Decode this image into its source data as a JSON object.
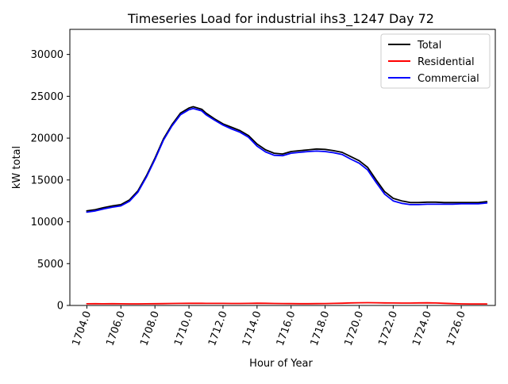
{
  "chart_data": {
    "type": "line",
    "title": "Timeseries Load for industrial ihs3_1247  Day 72",
    "xlabel": "Hour of Year",
    "ylabel": "kW total",
    "xlim": [
      1703.0,
      1728.0
    ],
    "ylim": [
      0,
      33000
    ],
    "xticks": [
      1704.0,
      1706.0,
      1708.0,
      1710.0,
      1712.0,
      1714.0,
      1716.0,
      1718.0,
      1720.0,
      1722.0,
      1724.0,
      1726.0
    ],
    "xtick_labels": [
      "1704.0",
      "1706.0",
      "1708.0",
      "1710.0",
      "1712.0",
      "1714.0",
      "1716.0",
      "1718.0",
      "1720.0",
      "1722.0",
      "1724.0",
      "1726.0"
    ],
    "yticks": [
      0,
      5000,
      10000,
      15000,
      20000,
      25000,
      30000
    ],
    "ytick_labels": [
      "0",
      "5000",
      "10000",
      "15000",
      "20000",
      "25000",
      "30000"
    ],
    "grid": false,
    "legend_position": "top-right",
    "x": [
      1704.0,
      1704.5,
      1705.0,
      1705.5,
      1706.0,
      1706.5,
      1707.0,
      1707.5,
      1708.0,
      1708.5,
      1709.0,
      1709.5,
      1710.0,
      1710.25,
      1710.5,
      1710.75,
      1711.0,
      1711.5,
      1712.0,
      1712.5,
      1713.0,
      1713.5,
      1714.0,
      1714.5,
      1715.0,
      1715.5,
      1716.0,
      1716.5,
      1717.0,
      1717.5,
      1718.0,
      1718.5,
      1719.0,
      1719.5,
      1720.0,
      1720.5,
      1721.0,
      1721.5,
      1722.0,
      1722.5,
      1723.0,
      1723.5,
      1724.0,
      1724.5,
      1725.0,
      1725.5,
      1726.0,
      1726.5,
      1727.0,
      1727.5
    ],
    "series": [
      {
        "name": "Total",
        "color": "#000000",
        "values": [
          11300,
          11450,
          11700,
          11900,
          12050,
          12600,
          13700,
          15500,
          17600,
          19900,
          21600,
          23000,
          23600,
          23750,
          23600,
          23450,
          23000,
          22300,
          21700,
          21300,
          20900,
          20300,
          19300,
          18600,
          18200,
          18100,
          18400,
          18500,
          18600,
          18700,
          18650,
          18500,
          18300,
          17800,
          17300,
          16500,
          15000,
          13600,
          12800,
          12500,
          12300,
          12300,
          12350,
          12350,
          12300,
          12300,
          12300,
          12300,
          12300,
          12400
        ]
      },
      {
        "name": "Residential",
        "color": "#ff0000",
        "values": [
          200,
          210,
          200,
          210,
          200,
          190,
          190,
          200,
          210,
          220,
          240,
          250,
          260,
          260,
          260,
          255,
          250,
          250,
          245,
          240,
          240,
          250,
          270,
          260,
          240,
          230,
          220,
          210,
          210,
          220,
          230,
          250,
          270,
          300,
          320,
          330,
          320,
          300,
          290,
          280,
          280,
          300,
          310,
          290,
          260,
          220,
          190,
          180,
          180,
          180
        ]
      },
      {
        "name": "Commercial",
        "color": "#0000ff",
        "values": [
          11150,
          11300,
          11550,
          11750,
          11900,
          12450,
          13550,
          15350,
          17450,
          19750,
          21450,
          22800,
          23400,
          23550,
          23400,
          23250,
          22800,
          22150,
          21550,
          21100,
          20700,
          20100,
          19050,
          18350,
          17950,
          17900,
          18200,
          18300,
          18400,
          18450,
          18400,
          18250,
          18050,
          17500,
          17000,
          16200,
          14700,
          13300,
          12500,
          12200,
          12050,
          12050,
          12100,
          12100,
          12100,
          12100,
          12150,
          12150,
          12150,
          12250
        ]
      }
    ]
  }
}
